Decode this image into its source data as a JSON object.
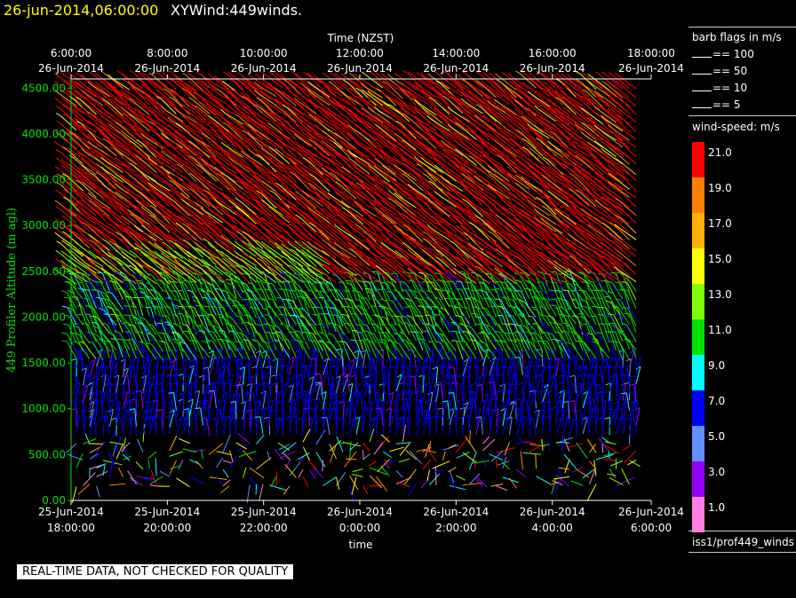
{
  "title": {
    "time": "26-jun-2014,06:00:00",
    "name": "XYWind:449winds."
  },
  "qc_banner": "REAL-TIME DATA, NOT CHECKED FOR QUALITY",
  "legend": {
    "barb_title": "barb flags in m/s",
    "barb_items": [
      "== 100",
      "== 50",
      "== 10",
      "== 5"
    ],
    "speed_title": "wind-speed: m/s",
    "colorbar": [
      {
        "label": "21.0",
        "color": "#ff0000"
      },
      {
        "label": "19.0",
        "color": "#ff8000"
      },
      {
        "label": "17.0",
        "color": "#ffb000"
      },
      {
        "label": "15.0",
        "color": "#ffff00"
      },
      {
        "label": "13.0",
        "color": "#80ff00"
      },
      {
        "label": "11.0",
        "color": "#00e000"
      },
      {
        "label": "9.0",
        "color": "#00ffff"
      },
      {
        "label": "7.0",
        "color": "#0000ff"
      },
      {
        "label": "5.0",
        "color": "#6090ff"
      },
      {
        "label": "3.0",
        "color": "#9000ff"
      },
      {
        "label": "1.0",
        "color": "#ff80e0"
      }
    ],
    "source": "iss1/prof449_winds"
  },
  "chart_data": {
    "type": "scatter",
    "top_axis_title": "Time (NZST)",
    "top_ticks": [
      {
        "time": "6:00:00",
        "date": "26-Jun-2014"
      },
      {
        "time": "8:00:00",
        "date": "26-Jun-2014"
      },
      {
        "time": "10:00:00",
        "date": "26-Jun-2014"
      },
      {
        "time": "12:00:00",
        "date": "26-Jun-2014"
      },
      {
        "time": "14:00:00",
        "date": "26-Jun-2014"
      },
      {
        "time": "16:00:00",
        "date": "26-Jun-2014"
      },
      {
        "time": "18:00:00",
        "date": "26-Jun-2014"
      }
    ],
    "xlabel": "time",
    "bottom_ticks": [
      {
        "date": "25-Jun-2014",
        "time": "18:00:00"
      },
      {
        "date": "25-Jun-2014",
        "time": "20:00:00"
      },
      {
        "date": "25-Jun-2014",
        "time": "22:00:00"
      },
      {
        "date": "26-Jun-2014",
        "time": "0:00:00"
      },
      {
        "date": "26-Jun-2014",
        "time": "2:00:00"
      },
      {
        "date": "26-Jun-2014",
        "time": "4:00:00"
      },
      {
        "date": "26-Jun-2014",
        "time": "6:00:00"
      }
    ],
    "ylabel": "449 Profiler Altitude (m agl)",
    "yticks": [
      "0.00",
      "500.00",
      "1000.00",
      "1500.00",
      "2000.00",
      "2500.00",
      "3000.00",
      "3500.00",
      "4000.00",
      "4500.00"
    ],
    "ylim": [
      0,
      4600
    ],
    "x_range_hours_utc": [
      18,
      30
    ],
    "speed_bands": [
      {
        "alt_min": 0,
        "alt_max": 700,
        "speed": "mixed"
      },
      {
        "alt_min": 700,
        "alt_max": 1500,
        "speed": 7
      },
      {
        "alt_min": 1500,
        "alt_max": 2300,
        "speed": 11
      },
      {
        "alt_min": 2300,
        "alt_max": 4600,
        "speed": 21
      }
    ]
  }
}
